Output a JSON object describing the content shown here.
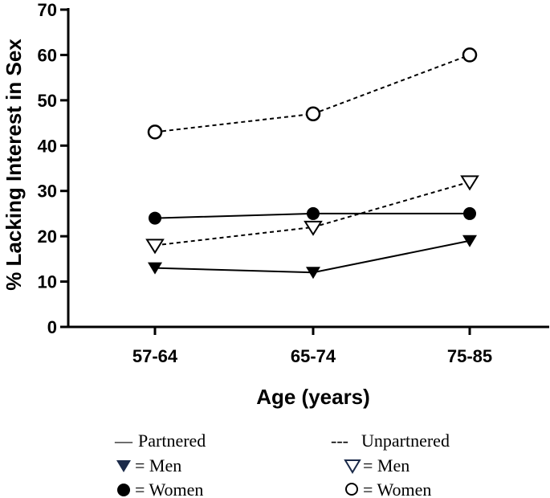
{
  "chart_data": {
    "type": "line",
    "categories": [
      "57-64",
      "65-74",
      "75-85"
    ],
    "xlabel": "Age (years)",
    "ylabel": "% Lacking Interest in Sex",
    "ylim": [
      0,
      70
    ],
    "yticks": [
      0,
      10,
      20,
      30,
      40,
      50,
      60,
      70
    ],
    "grid": false,
    "series": [
      {
        "key": "unpartnered-women",
        "values": [
          43,
          47,
          60
        ],
        "line": "dashed",
        "marker": "circle-open"
      },
      {
        "key": "unpartnered-men",
        "values": [
          18,
          22,
          32
        ],
        "line": "dashed",
        "marker": "triangle-open"
      },
      {
        "key": "partnered-women",
        "values": [
          24,
          25,
          25
        ],
        "line": "solid",
        "marker": "circle-filled"
      },
      {
        "key": "partnered-men",
        "values": [
          13,
          12,
          19
        ],
        "line": "solid",
        "marker": "triangle-filled"
      }
    ],
    "legend": {
      "placement": "bottom",
      "partnered": {
        "symbol": "—",
        "label": "Partnered"
      },
      "unpartnered": {
        "symbol": "---",
        "label": "Unpartnered"
      },
      "men_label": "= Men",
      "women_label": "= Women"
    },
    "colors": {
      "filled_triangle": "#1b2a49",
      "open_triangle": "#1b2a49",
      "markers": "#000000"
    }
  }
}
